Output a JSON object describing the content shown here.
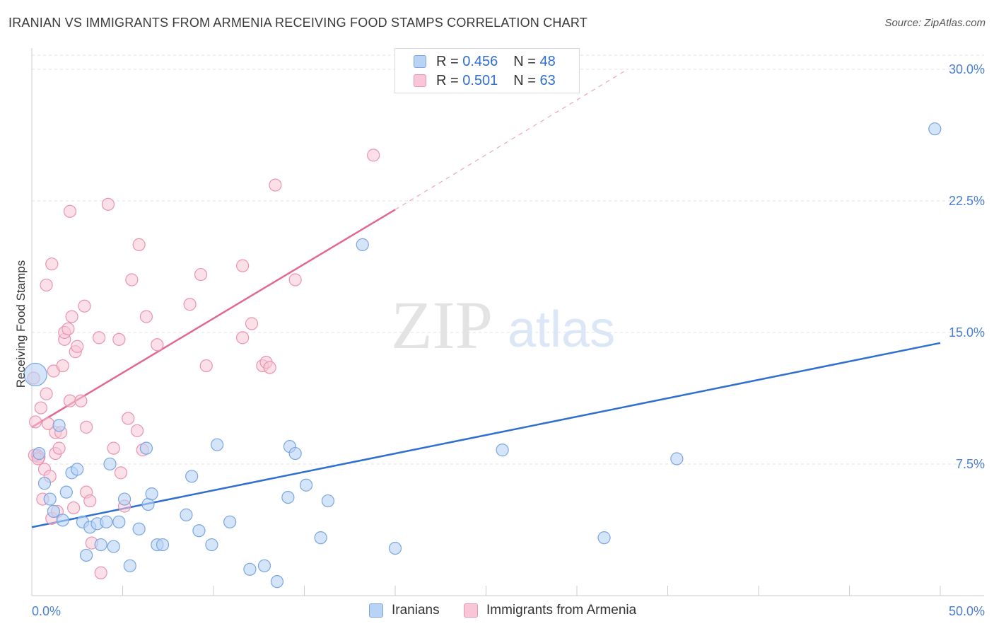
{
  "title": "IRANIAN VS IMMIGRANTS FROM ARMENIA RECEIVING FOOD STAMPS CORRELATION CHART",
  "source": "Source: ZipAtlas.com",
  "watermark": {
    "zip": "ZIP",
    "atlas": "atlas"
  },
  "legend": {
    "r_label": "R =",
    "n_label": "N =",
    "rows": [
      {
        "r": "0.456",
        "n": "48",
        "fill": "#b9d3f5",
        "stroke": "#7aa5e0"
      },
      {
        "r": "0.501",
        "n": "63",
        "fill": "#f8c6d6",
        "stroke": "#e993b2"
      }
    ]
  },
  "bottom_legend": [
    {
      "label": "Iranians"
    },
    {
      "label": "Immigrants from Armenia"
    }
  ],
  "chart_data": {
    "type": "scatter",
    "ylabel": "Receiving Food Stamps",
    "xlim": [
      0,
      50
    ],
    "ylim": [
      0,
      30.8
    ],
    "x_tick_labels": [
      "0.0%",
      "50.0%"
    ],
    "y_ticks": [
      7.5,
      15.0,
      22.5,
      30.0
    ],
    "y_tick_labels": [
      "7.5%",
      "15.0%",
      "22.5%",
      "30.0%"
    ],
    "colors": {
      "blue_fill": "#b9d3f5",
      "blue_stroke": "#7aa5e0",
      "blue_line": "#2f6fcf",
      "pink_fill": "#f8c6d6",
      "pink_stroke": "#e993b2",
      "pink_line": "#e06891"
    },
    "series": [
      {
        "name": "Iranians",
        "trend": {
          "x0": 0,
          "y0": 3.9,
          "x1": 50,
          "y1": 14.4
        },
        "points": [
          [
            0.2,
            12.6
          ],
          [
            0.4,
            8.1
          ],
          [
            0.7,
            6.4
          ],
          [
            1.0,
            5.5
          ],
          [
            1.2,
            4.8
          ],
          [
            1.5,
            9.7
          ],
          [
            1.7,
            4.3
          ],
          [
            1.9,
            5.9
          ],
          [
            2.2,
            7.0
          ],
          [
            2.5,
            7.2
          ],
          [
            2.8,
            4.2
          ],
          [
            3.0,
            2.3
          ],
          [
            3.2,
            3.9
          ],
          [
            3.6,
            4.1
          ],
          [
            3.8,
            2.9
          ],
          [
            4.1,
            4.2
          ],
          [
            4.3,
            7.5
          ],
          [
            4.5,
            2.8
          ],
          [
            4.8,
            4.2
          ],
          [
            5.1,
            5.5
          ],
          [
            5.4,
            1.7
          ],
          [
            5.9,
            3.8
          ],
          [
            6.3,
            8.4
          ],
          [
            6.4,
            5.2
          ],
          [
            6.6,
            5.8
          ],
          [
            6.9,
            2.9
          ],
          [
            7.2,
            2.9
          ],
          [
            8.5,
            4.6
          ],
          [
            8.8,
            6.8
          ],
          [
            9.2,
            3.7
          ],
          [
            9.9,
            2.9
          ],
          [
            10.2,
            8.6
          ],
          [
            10.9,
            4.2
          ],
          [
            12.0,
            1.5
          ],
          [
            12.8,
            1.7
          ],
          [
            13.5,
            0.8
          ],
          [
            14.1,
            5.6
          ],
          [
            14.2,
            8.5
          ],
          [
            14.5,
            8.1
          ],
          [
            15.1,
            6.3
          ],
          [
            15.9,
            3.3
          ],
          [
            16.3,
            5.4
          ],
          [
            18.2,
            20.0
          ],
          [
            20.0,
            2.7
          ],
          [
            25.9,
            8.3
          ],
          [
            31.5,
            3.3
          ],
          [
            35.5,
            7.8
          ],
          [
            49.7,
            26.6
          ]
        ]
      },
      {
        "name": "Immigrants from Armenia",
        "trend": {
          "x0": 0,
          "y0": 9.6,
          "x1": 20,
          "y1": 22.0
        },
        "trend_ext": {
          "x0": 20,
          "y0": 22.0,
          "x1": 32.8,
          "y1": 30.0
        },
        "points": [
          [
            0.1,
            12.4
          ],
          [
            0.2,
            9.9
          ],
          [
            0.3,
            8.0
          ],
          [
            0.4,
            7.9
          ],
          [
            0.5,
            10.7
          ],
          [
            0.6,
            5.5
          ],
          [
            0.7,
            7.2
          ],
          [
            0.8,
            17.7
          ],
          [
            0.8,
            11.5
          ],
          [
            0.9,
            9.8
          ],
          [
            1.0,
            6.8
          ],
          [
            1.1,
            18.9
          ],
          [
            1.1,
            4.4
          ],
          [
            1.2,
            12.8
          ],
          [
            1.3,
            9.3
          ],
          [
            1.3,
            8.1
          ],
          [
            1.4,
            4.8
          ],
          [
            1.5,
            8.4
          ],
          [
            1.6,
            9.3
          ],
          [
            1.7,
            13.1
          ],
          [
            1.8,
            14.6
          ],
          [
            1.8,
            15.0
          ],
          [
            2.0,
            15.2
          ],
          [
            2.1,
            11.1
          ],
          [
            2.1,
            21.9
          ],
          [
            2.2,
            15.9
          ],
          [
            2.3,
            5.0
          ],
          [
            2.4,
            13.9
          ],
          [
            2.5,
            14.2
          ],
          [
            2.7,
            11.1
          ],
          [
            2.9,
            16.5
          ],
          [
            3.0,
            9.6
          ],
          [
            3.0,
            5.9
          ],
          [
            3.2,
            5.4
          ],
          [
            3.3,
            3.0
          ],
          [
            3.7,
            14.7
          ],
          [
            3.8,
            1.3
          ],
          [
            4.2,
            22.3
          ],
          [
            4.5,
            8.4
          ],
          [
            4.8,
            14.6
          ],
          [
            4.9,
            7.0
          ],
          [
            5.1,
            5.1
          ],
          [
            5.3,
            10.1
          ],
          [
            5.5,
            18.0
          ],
          [
            5.8,
            9.4
          ],
          [
            5.9,
            20.0
          ],
          [
            6.1,
            8.3
          ],
          [
            6.3,
            15.9
          ],
          [
            6.9,
            14.3
          ],
          [
            8.7,
            16.6
          ],
          [
            9.3,
            18.3
          ],
          [
            9.6,
            13.1
          ],
          [
            11.6,
            18.8
          ],
          [
            11.6,
            14.7
          ],
          [
            12.1,
            15.5
          ],
          [
            12.7,
            13.1
          ],
          [
            12.9,
            13.3
          ],
          [
            13.1,
            13.0
          ],
          [
            13.4,
            23.4
          ],
          [
            14.5,
            18.0
          ],
          [
            18.8,
            25.1
          ],
          [
            0.15,
            8.0
          ],
          [
            0.35,
            7.8
          ]
        ]
      }
    ]
  }
}
